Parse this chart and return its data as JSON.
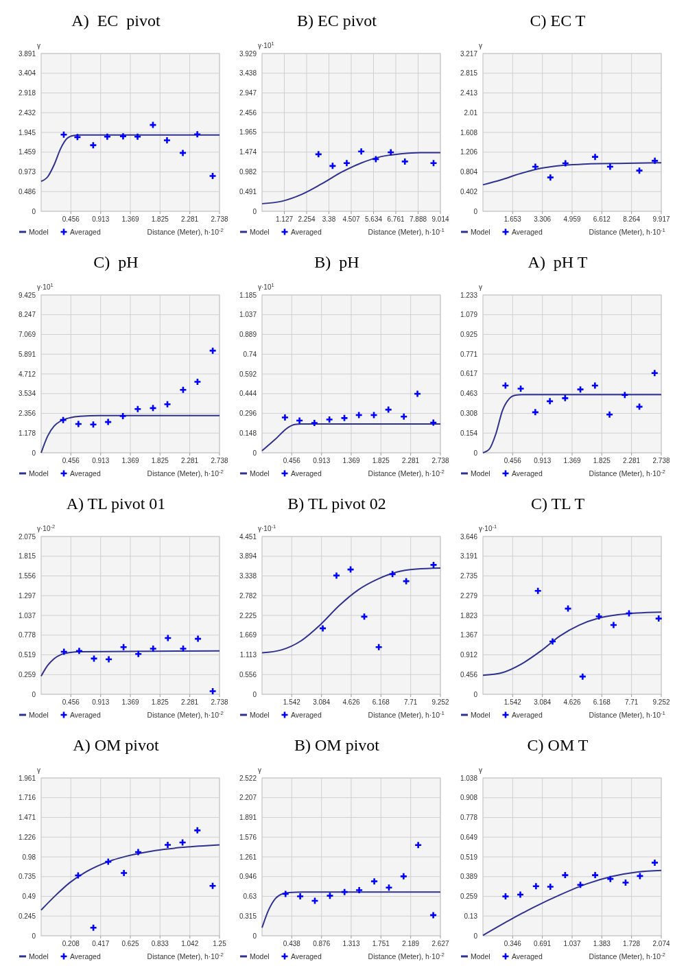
{
  "chart_data": [
    {
      "type": "line",
      "title": "A)  EC  pivot",
      "ylabel": "γ",
      "xlabel": "Distance (Meter), h·10$^{-2}$",
      "grid": true,
      "legend": "bottom",
      "xlim": [
        0,
        2.738
      ],
      "xticks": [
        0.456,
        0.913,
        1.369,
        1.825,
        2.281,
        2.738
      ],
      "ylim": [
        0,
        3.891
      ],
      "yticks": [
        0,
        0.486,
        0.973,
        1.459,
        1.945,
        2.432,
        2.918,
        3.404,
        3.891
      ],
      "series": [
        {
          "name": "Model",
          "type": "line",
          "marker": "none",
          "color": "#2e3192",
          "x": [
            0,
            0.1,
            0.2,
            0.3,
            0.4,
            0.5,
            0.6,
            2.738
          ],
          "values": [
            0.74,
            0.85,
            1.15,
            1.55,
            1.8,
            1.87,
            1.88,
            1.88
          ]
        },
        {
          "name": "Averaged",
          "type": "scatter",
          "marker": "cross",
          "color": "#0000ff",
          "x": [
            0.347,
            0.557,
            0.799,
            1.015,
            1.258,
            1.48,
            1.716,
            1.932,
            2.175,
            2.397,
            2.633
          ],
          "values": [
            1.89,
            1.83,
            1.63,
            1.84,
            1.85,
            1.84,
            2.13,
            1.75,
            1.44,
            1.9,
            0.87
          ]
        }
      ]
    },
    {
      "type": "line",
      "title": "B) EC pivot",
      "ylabel": "γ·10$^{1}$",
      "xlabel": "Distance (Meter), h·10$^{-1}$",
      "grid": true,
      "legend": "bottom",
      "xlim": [
        0,
        9.014
      ],
      "xticks": [
        1.127,
        2.254,
        3.38,
        4.507,
        5.634,
        6.761,
        7.888,
        9.014
      ],
      "ylim": [
        0,
        3.929
      ],
      "yticks": [
        0,
        0.491,
        0.982,
        1.474,
        1.965,
        2.456,
        2.947,
        3.438,
        3.929
      ],
      "series": [
        {
          "name": "Model",
          "type": "line",
          "marker": "none",
          "color": "#2e3192",
          "x": [
            0,
            1,
            2,
            3,
            4,
            5,
            6,
            7,
            8,
            9.014
          ],
          "values": [
            0.19,
            0.25,
            0.42,
            0.68,
            0.97,
            1.2,
            1.36,
            1.43,
            1.46,
            1.46
          ]
        },
        {
          "name": "Averaged",
          "type": "scatter",
          "marker": "cross",
          "color": "#0000ff",
          "x": [
            2.853,
            3.567,
            4.28,
            5.015,
            5.75,
            6.507,
            7.22,
            8.668
          ],
          "values": [
            1.42,
            1.13,
            1.2,
            1.49,
            1.3,
            1.47,
            1.24,
            1.2
          ]
        }
      ]
    },
    {
      "type": "line",
      "title": "C) EC T",
      "ylabel": "γ",
      "xlabel": "Distance (Meter), h·10$^{-1}$",
      "grid": true,
      "legend": "bottom",
      "xlim": [
        0,
        9.917
      ],
      "xticks": [
        1.653,
        3.306,
        4.959,
        6.612,
        8.264,
        9.917
      ],
      "ylim": [
        0,
        3.217
      ],
      "yticks": [
        0,
        0.402,
        0.804,
        1.206,
        1.608,
        2.01,
        2.413,
        2.815,
        3.217
      ],
      "series": [
        {
          "name": "Model",
          "type": "line",
          "marker": "none",
          "color": "#2e3192",
          "x": [
            0,
            1,
            2,
            3,
            4,
            5,
            6,
            8,
            9.917
          ],
          "values": [
            0.54,
            0.64,
            0.76,
            0.86,
            0.92,
            0.95,
            0.97,
            0.98,
            0.99
          ]
        },
        {
          "name": "Averaged",
          "type": "scatter",
          "marker": "cross",
          "color": "#0000ff",
          "x": [
            2.915,
            3.752,
            4.588,
            6.237,
            7.073,
            8.698,
            9.559
          ],
          "values": [
            0.91,
            0.69,
            0.98,
            1.11,
            0.91,
            0.83,
            1.03
          ]
        }
      ]
    },
    {
      "type": "line",
      "title": "C)  pH",
      "ylabel": "γ·10$^{1}$",
      "xlabel": "Distance (Meter), h·10$^{-2}$",
      "grid": true,
      "legend": "bottom",
      "xlim": [
        0,
        2.738
      ],
      "xticks": [
        0.456,
        0.913,
        1.369,
        1.825,
        2.281,
        2.738
      ],
      "ylim": [
        0,
        9.425
      ],
      "yticks": [
        0,
        1.178,
        2.356,
        3.534,
        4.712,
        5.891,
        7.069,
        8.247,
        9.425
      ],
      "series": [
        {
          "name": "Model",
          "type": "line",
          "marker": "none",
          "color": "#2e3192",
          "x": [
            0,
            0.1,
            0.2,
            0.3,
            0.45,
            0.6,
            0.9,
            2.738
          ],
          "values": [
            0,
            1.0,
            1.6,
            1.9,
            2.1,
            2.18,
            2.22,
            2.22
          ]
        },
        {
          "name": "Averaged",
          "type": "scatter",
          "marker": "cross",
          "color": "#0000ff",
          "x": [
            0.338,
            0.572,
            0.8,
            1.028,
            1.255,
            1.483,
            1.717,
            1.938,
            2.179,
            2.4,
            2.634
          ],
          "values": [
            1.96,
            1.72,
            1.69,
            1.84,
            2.19,
            2.61,
            2.67,
            2.9,
            3.76,
            4.24,
            6.1
          ]
        }
      ]
    },
    {
      "type": "line",
      "title": "B)  pH",
      "ylabel": "γ·10$^{1}$",
      "xlabel": "Distance (Meter), h·10$^{-2}$",
      "grid": true,
      "legend": "bottom",
      "xlim": [
        0,
        2.738
      ],
      "xticks": [
        0.456,
        0.913,
        1.369,
        1.825,
        2.281,
        2.738
      ],
      "ylim": [
        0,
        1.185
      ],
      "yticks": [
        0,
        0.148,
        0.296,
        0.444,
        0.592,
        0.74,
        0.889,
        1.037,
        1.185
      ],
      "series": [
        {
          "name": "Model",
          "type": "line",
          "marker": "none",
          "color": "#2e3192",
          "x": [
            0,
            0.2,
            0.4,
            0.5,
            0.6,
            2.738
          ],
          "values": [
            0.015,
            0.1,
            0.19,
            0.212,
            0.216,
            0.216
          ]
        },
        {
          "name": "Averaged",
          "type": "scatter",
          "marker": "cross",
          "color": "#0000ff",
          "x": [
            0.352,
            0.575,
            0.804,
            1.034,
            1.264,
            1.487,
            1.717,
            1.94,
            2.177,
            2.386,
            2.63
          ],
          "values": [
            0.265,
            0.242,
            0.224,
            0.25,
            0.261,
            0.283,
            0.283,
            0.324,
            0.272,
            0.443,
            0.227
          ]
        }
      ]
    },
    {
      "type": "line",
      "title": "A)  pH T",
      "ylabel": "γ",
      "xlabel": "Distance (Meter), h·10$^{-2}$",
      "grid": true,
      "legend": "bottom",
      "xlim": [
        0,
        2.738
      ],
      "xticks": [
        0.456,
        0.913,
        1.369,
        1.825,
        2.281,
        2.738
      ],
      "ylim": [
        0,
        1.233
      ],
      "yticks": [
        0,
        0.154,
        0.308,
        0.463,
        0.617,
        0.771,
        0.925,
        1.079,
        1.233
      ],
      "series": [
        {
          "name": "Model",
          "type": "line",
          "marker": "none",
          "color": "#2e3192",
          "x": [
            0,
            0.1,
            0.2,
            0.3,
            0.4,
            0.5,
            0.6,
            2.738
          ],
          "values": [
            0,
            0.03,
            0.15,
            0.33,
            0.42,
            0.45,
            0.455,
            0.455
          ]
        },
        {
          "name": "Averaged",
          "type": "scatter",
          "marker": "cross",
          "color": "#0000ff",
          "x": [
            0.346,
            0.58,
            0.804,
            1.028,
            1.262,
            1.496,
            1.72,
            1.944,
            2.178,
            2.402,
            2.636
          ],
          "values": [
            0.525,
            0.501,
            0.317,
            0.403,
            0.427,
            0.495,
            0.525,
            0.299,
            0.452,
            0.36,
            0.623
          ]
        }
      ]
    },
    {
      "type": "line",
      "title": "A) TL pivot 01",
      "ylabel": "γ·10$^{-2}$",
      "xlabel": "Distance (Meter), h·10$^{-2}$",
      "grid": true,
      "legend": "bottom",
      "xlim": [
        0,
        2.738
      ],
      "xticks": [
        0.456,
        0.913,
        1.369,
        1.825,
        2.281,
        2.738
      ],
      "ylim": [
        0,
        2.075
      ],
      "yticks": [
        0,
        0.259,
        0.519,
        0.778,
        1.037,
        1.297,
        1.556,
        1.815,
        2.075
      ],
      "series": [
        {
          "name": "Model",
          "type": "line",
          "marker": "none",
          "color": "#2e3192",
          "x": [
            0,
            0.1,
            0.2,
            0.3,
            0.45,
            0.6,
            2.738
          ],
          "values": [
            0.24,
            0.38,
            0.47,
            0.52,
            0.55,
            0.56,
            0.57
          ]
        },
        {
          "name": "Averaged",
          "type": "scatter",
          "marker": "cross",
          "color": "#0000ff",
          "x": [
            0.35,
            0.584,
            0.811,
            1.038,
            1.265,
            1.492,
            1.719,
            1.946,
            2.18,
            2.407,
            2.634
          ],
          "values": [
            0.56,
            0.57,
            0.47,
            0.46,
            0.62,
            0.53,
            0.6,
            0.74,
            0.6,
            0.73,
            0.04
          ]
        }
      ]
    },
    {
      "type": "line",
      "title": "B) TL pivot 02",
      "ylabel": "γ·10$^{-1}$",
      "xlabel": "Distance (Meter), h·10$^{-1}$",
      "grid": true,
      "legend": "bottom",
      "xlim": [
        0,
        9.252
      ],
      "xticks": [
        1.542,
        3.084,
        4.626,
        6.168,
        7.71,
        9.252
      ],
      "ylim": [
        0,
        4.451
      ],
      "yticks": [
        0,
        0.556,
        1.113,
        1.669,
        2.225,
        2.782,
        3.338,
        3.894,
        4.451
      ],
      "series": [
        {
          "name": "Model",
          "type": "line",
          "marker": "none",
          "color": "#2e3192",
          "x": [
            0,
            1,
            2,
            3,
            4,
            5,
            6,
            7,
            8,
            9.252
          ],
          "values": [
            1.17,
            1.25,
            1.5,
            1.95,
            2.5,
            2.95,
            3.25,
            3.45,
            3.53,
            3.56
          ]
        },
        {
          "name": "Averaged",
          "type": "scatter",
          "marker": "cross",
          "color": "#0000ff",
          "x": [
            3.151,
            3.861,
            4.593,
            5.303,
            6.057,
            6.767,
            7.477,
            8.897
          ],
          "values": [
            1.86,
            3.35,
            3.52,
            2.19,
            1.33,
            3.39,
            3.19,
            3.65
          ]
        }
      ]
    },
    {
      "type": "line",
      "title": "C) TL T",
      "ylabel": "γ·10$^{-1}$",
      "xlabel": "Distance (Meter), h·10$^{-1}$",
      "grid": true,
      "legend": "bottom",
      "xlim": [
        0,
        9.252
      ],
      "xticks": [
        1.542,
        3.084,
        4.626,
        6.168,
        7.71,
        9.252
      ],
      "ylim": [
        0,
        3.646
      ],
      "yticks": [
        0,
        0.456,
        0.912,
        1.367,
        1.823,
        2.279,
        2.735,
        3.191,
        3.646
      ],
      "series": [
        {
          "name": "Model",
          "type": "line",
          "marker": "none",
          "color": "#2e3192",
          "x": [
            0,
            1,
            2,
            3,
            4,
            5,
            6,
            7,
            8,
            9.252
          ],
          "values": [
            0.44,
            0.5,
            0.7,
            1.0,
            1.35,
            1.6,
            1.76,
            1.84,
            1.88,
            1.9
          ]
        },
        {
          "name": "Averaged",
          "type": "scatter",
          "marker": "cross",
          "color": "#0000ff",
          "x": [
            2.854,
            3.612,
            4.414,
            5.172,
            6.019,
            6.777,
            7.58,
            9.118
          ],
          "values": [
            2.39,
            1.22,
            1.98,
            0.41,
            1.8,
            1.6,
            1.87,
            1.75
          ]
        }
      ]
    },
    {
      "type": "line",
      "title": "A) OM pivot",
      "ylabel": "γ",
      "xlabel": "Distance (Meter), h·10$^{-2}$",
      "grid": true,
      "legend": "bottom",
      "xlim": [
        0,
        1.25
      ],
      "xticks": [
        0.208,
        0.417,
        0.625,
        0.833,
        1.042,
        1.25
      ],
      "ylim": [
        0,
        1.961
      ],
      "yticks": [
        0,
        0.245,
        0.49,
        0.735,
        0.98,
        1.226,
        1.471,
        1.716,
        1.961
      ],
      "series": [
        {
          "name": "Model",
          "type": "line",
          "marker": "none",
          "color": "#2e3192",
          "x": [
            0,
            0.1,
            0.2,
            0.3,
            0.4,
            0.5,
            0.6,
            0.8,
            1.0,
            1.25
          ],
          "values": [
            0.32,
            0.5,
            0.66,
            0.78,
            0.87,
            0.94,
            0.99,
            1.06,
            1.1,
            1.13
          ]
        },
        {
          "name": "Averaged",
          "type": "scatter",
          "marker": "cross",
          "color": "#0000ff",
          "x": [
            0.259,
            0.366,
            0.47,
            0.58,
            0.68,
            0.887,
            0.991,
            1.095,
            1.202
          ],
          "values": [
            0.75,
            0.1,
            0.92,
            0.78,
            1.04,
            1.13,
            1.16,
            1.31,
            0.62
          ]
        }
      ]
    },
    {
      "type": "line",
      "title": "B) OM pivot",
      "ylabel": "γ",
      "xlabel": "Distance (Meter), h·10$^{-2}$",
      "grid": true,
      "legend": "bottom",
      "xlim": [
        0,
        2.627
      ],
      "xticks": [
        0.438,
        0.876,
        1.313,
        1.751,
        2.189,
        2.627
      ],
      "ylim": [
        0,
        2.522
      ],
      "yticks": [
        0,
        0.315,
        0.63,
        0.946,
        1.261,
        1.576,
        1.891,
        2.207,
        2.522
      ],
      "series": [
        {
          "name": "Model",
          "type": "line",
          "marker": "none",
          "color": "#2e3192",
          "x": [
            0,
            0.1,
            0.2,
            0.3,
            0.4,
            0.6,
            2.627
          ],
          "values": [
            0.13,
            0.42,
            0.6,
            0.67,
            0.69,
            0.7,
            0.7
          ]
        },
        {
          "name": "Averaged",
          "type": "scatter",
          "marker": "cross",
          "color": "#0000ff",
          "x": [
            0.346,
            0.562,
            0.778,
            1.0,
            1.215,
            1.431,
            1.653,
            1.869,
            2.085,
            2.3,
            2.522
          ],
          "values": [
            0.67,
            0.63,
            0.56,
            0.64,
            0.7,
            0.73,
            0.87,
            0.77,
            0.95,
            1.45,
            0.33
          ]
        }
      ]
    },
    {
      "type": "line",
      "title": "C) OM T",
      "ylabel": "γ",
      "xlabel": "Distance (Meter), h·10$^{-2}$",
      "grid": true,
      "legend": "bottom",
      "xlim": [
        0,
        2.074
      ],
      "xticks": [
        0.346,
        0.691,
        1.037,
        1.383,
        1.728,
        2.074
      ],
      "ylim": [
        0,
        1.038
      ],
      "yticks": [
        0,
        0.13,
        0.259,
        0.389,
        0.519,
        0.649,
        0.778,
        0.908,
        1.038
      ],
      "series": [
        {
          "name": "Model",
          "type": "line",
          "marker": "none",
          "color": "#2e3192",
          "x": [
            0,
            0.3,
            0.6,
            0.9,
            1.2,
            1.5,
            1.8,
            2.074
          ],
          "values": [
            0.003,
            0.1,
            0.19,
            0.27,
            0.34,
            0.39,
            0.42,
            0.43
          ]
        },
        {
          "name": "Averaged",
          "type": "scatter",
          "marker": "cross",
          "color": "#0000ff",
          "x": [
            0.263,
            0.435,
            0.617,
            0.784,
            0.956,
            1.133,
            1.305,
            1.482,
            1.659,
            1.826,
            1.998
          ],
          "values": [
            0.259,
            0.271,
            0.326,
            0.323,
            0.399,
            0.335,
            0.399,
            0.374,
            0.35,
            0.393,
            0.481
          ]
        }
      ]
    }
  ]
}
